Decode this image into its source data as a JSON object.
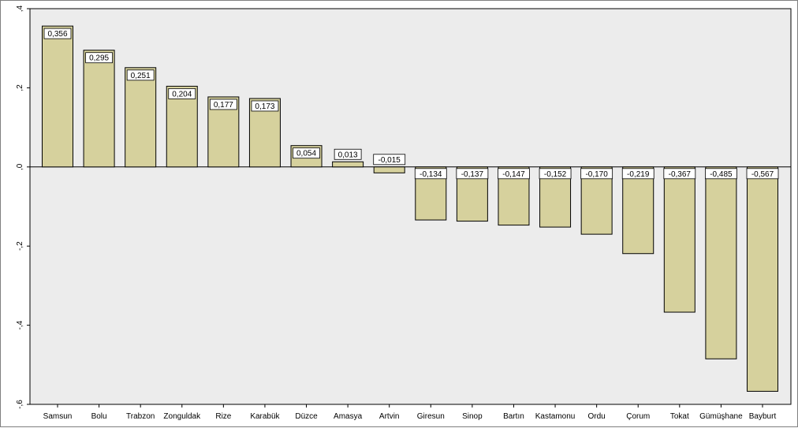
{
  "chart_data": {
    "type": "bar",
    "title": "",
    "xlabel": "",
    "ylabel": "",
    "categories": [
      "Samsun",
      "Bolu",
      "Trabzon",
      "Zonguldak",
      "Rize",
      "Karabük",
      "Düzce",
      "Amasya",
      "Artvin",
      "Giresun",
      "Sinop",
      "Bartın",
      "Kastamonu",
      "Ordu",
      "Çorum",
      "Tokat",
      "Gümüşhane",
      "Bayburt"
    ],
    "values": [
      0.356,
      0.295,
      0.251,
      0.204,
      0.177,
      0.173,
      0.054,
      0.013,
      -0.015,
      -0.134,
      -0.137,
      -0.147,
      -0.152,
      -0.17,
      -0.219,
      -0.367,
      -0.485,
      -0.567
    ],
    "data_labels": [
      "0,356",
      "0,295",
      "0,251",
      "0,204",
      "0,177",
      "0,173",
      "0,054",
      "0,013",
      "-0,015",
      "-0,134",
      "-0,137",
      "-0,147",
      "-0,152",
      "-0,170",
      "-0,219",
      "-0,367",
      "-0,485",
      "-0,567"
    ],
    "yticks": [
      0.4,
      0.2,
      0.0,
      -0.2,
      -0.4,
      -0.6
    ],
    "ytick_labels": [
      ",4",
      ",2",
      ",0",
      "-,2",
      "-,4",
      "-,6"
    ],
    "ylim": [
      -0.6,
      0.4
    ],
    "grid": false,
    "legend": "none",
    "colors": {
      "bar_fill": "#d6d19d",
      "bar_stroke": "#000000",
      "plot_background": "#ececec",
      "plot_border": "#000000",
      "label_box": "#ffffff"
    }
  }
}
